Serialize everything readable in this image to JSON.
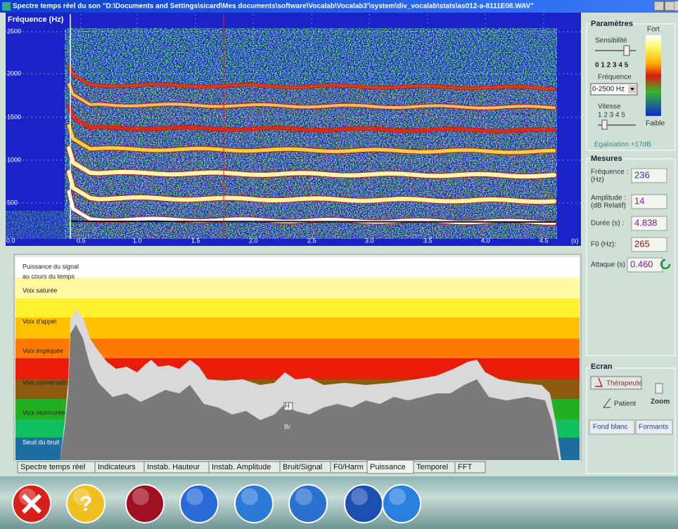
{
  "window": {
    "title": "Spectre temps réel du son \"D:\\Documents and Settings\\sicard\\Mes documents\\software\\Vocalab\\Vocalab3'\\system\\div_vocalab\\stats\\as012-a-8111E08.WAV\""
  },
  "spectrogram": {
    "axis_label": "Fréquence (Hz)",
    "y_ticks": [
      "2500",
      "2000",
      "1500",
      "1000",
      "500"
    ],
    "x_ticks": [
      "0.0",
      "0.5",
      "1.0",
      "1.5",
      "2.0",
      "2.5",
      "3.0",
      "3.5",
      "4.0",
      "4.5"
    ],
    "x_unit": "(s)"
  },
  "power": {
    "labels": [
      "Puissance du signal",
      "au cours du temps",
      "Voix saturée",
      "Voix d'appel",
      "Voix impliquée",
      "Voix conversationn",
      "Voix murmurée",
      "Seuil du bruit"
    ],
    "markers": [
      "H",
      "Br"
    ]
  },
  "tabs": [
    "Spectre temps réel",
    "Indicateurs",
    "Instab. Hauteur",
    "Instab. Amplitude",
    "Bruit/Signal",
    "F0/Harm",
    "Puissance",
    "Temporel",
    "FFT"
  ],
  "selected_tab": 6,
  "parameters": {
    "heading": "Paramètres",
    "strong": "Fort",
    "weak": "Faible",
    "sensitivity": "Sensibilité",
    "sensitivity_scale": "0 1 2 3 4 5",
    "frequency": "Fréquence",
    "frequency_range": "0-2500 Hz",
    "speed": "Vitesse",
    "speed_scale": "1 2 3 4 5",
    "equalisation": "Egalisation +17dB"
  },
  "measures": {
    "heading": "Mesures",
    "rows": [
      {
        "label": [
          "Fréquence :",
          "(Hz)"
        ],
        "value": "236"
      },
      {
        "label": [
          "Amplitude :",
          "(dB Relatif)"
        ],
        "value": "14"
      },
      {
        "label": [
          "Durée (s) :"
        ],
        "value": "4.838"
      },
      {
        "label": [
          "F0 (Hz):"
        ],
        "value": "265"
      },
      {
        "label": [
          "Attaque (s)"
        ],
        "value": "0.460"
      }
    ]
  },
  "screen": {
    "heading": "Ecran",
    "therapist": "Thérapeute",
    "patient": "Patient",
    "zoom": "Zoom",
    "white_background": "Fond blanc",
    "formants": "Formants"
  }
}
